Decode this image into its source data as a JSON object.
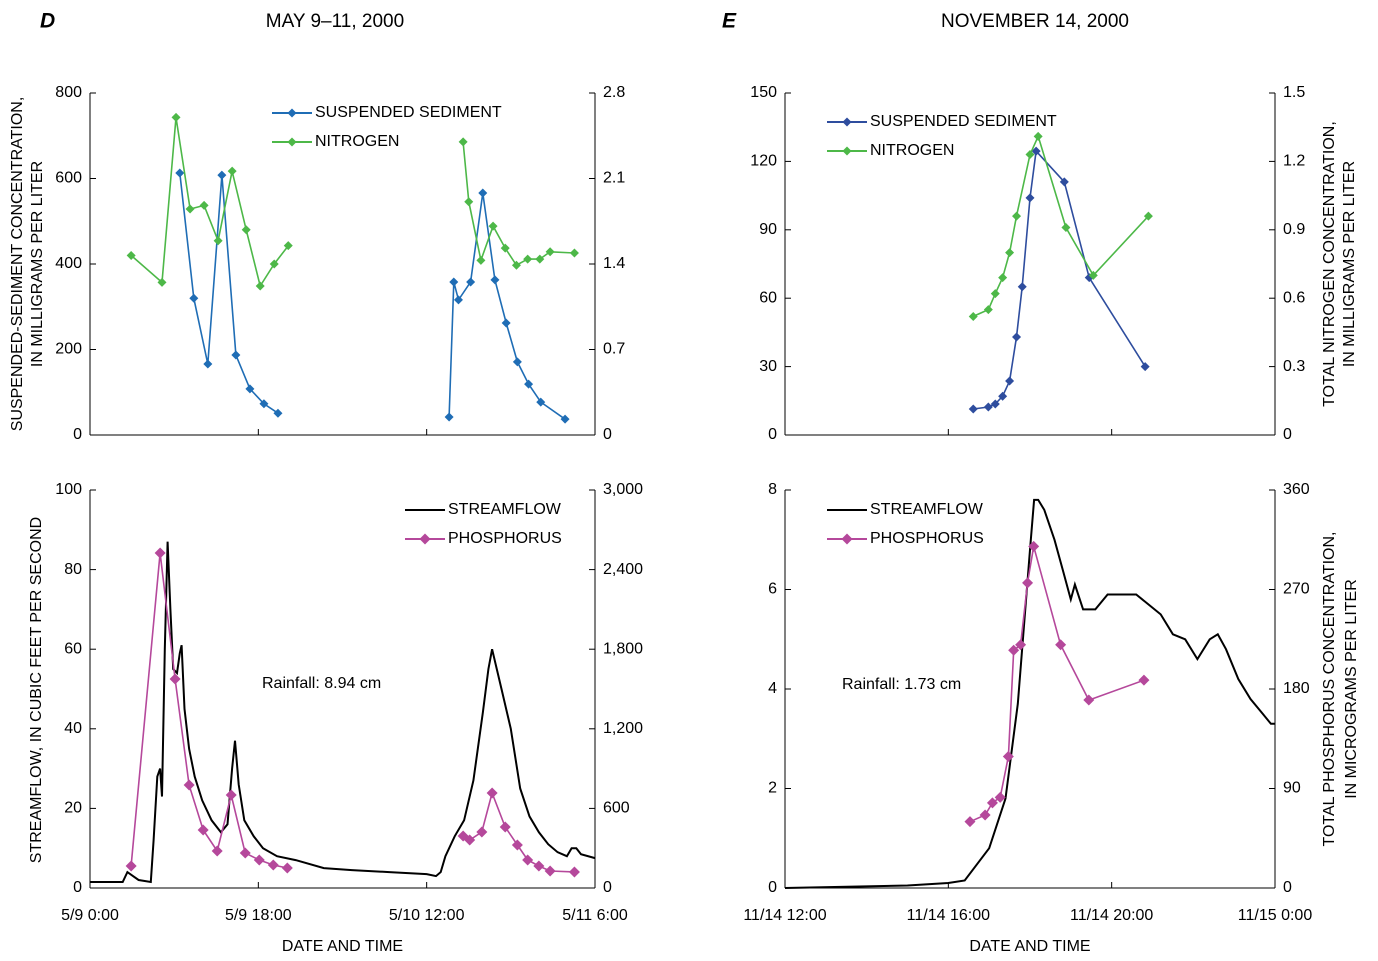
{
  "chart_data": [
    {
      "type": "line",
      "label": "D",
      "title": "MAY 9–11, 2000",
      "ylabel": [
        "SUSPENDED-SEDIMENT CONCENTRATION,",
        "IN MILLIGRAMS PER LITER"
      ],
      "xlim": [
        0,
        54
      ],
      "xticks": [
        0,
        18,
        36,
        54
      ],
      "ylim": [
        0,
        800
      ],
      "yticks": [
        0,
        200,
        400,
        600,
        800
      ],
      "ycolor": "#1f6db5",
      "y2lim": [
        0,
        2.8
      ],
      "y2ticks": [
        0,
        0.7,
        1.4,
        2.1,
        2.8
      ],
      "y2color": "#4db848",
      "legend": "upper center",
      "series": [
        {
          "name": "SUSPENDED SEDIMENT",
          "color": "#1f6db5",
          "marker": "diamond",
          "x": [
            9.6,
            11.1,
            12.6,
            14.1,
            15.6,
            17.1,
            18.6,
            20.1,
            null,
            38.4,
            38.9,
            39.4,
            40.7,
            42.0,
            43.3,
            44.5,
            45.7,
            46.9,
            48.2,
            50.8
          ],
          "values": [
            613,
            320,
            166,
            608,
            187,
            108,
            73,
            51,
            null,
            42,
            358,
            316,
            358,
            566,
            363,
            262,
            171,
            119,
            77,
            37
          ]
        },
        {
          "name": "NITROGEN",
          "color": "#4db848",
          "marker": "diamond",
          "axis": "y2",
          "x": [
            4.4,
            7.7,
            9.2,
            10.7,
            12.2,
            13.7,
            15.2,
            16.7,
            18.2,
            19.7,
            21.2,
            null,
            39.9,
            40.5,
            41.8,
            43.1,
            44.4,
            45.6,
            46.8,
            48.1,
            49.2,
            51.8
          ],
          "values": [
            1.47,
            1.25,
            2.6,
            1.85,
            1.88,
            1.59,
            2.16,
            1.68,
            1.22,
            1.4,
            1.55,
            null,
            2.4,
            1.91,
            1.43,
            1.71,
            1.53,
            1.39,
            1.44,
            1.44,
            1.5,
            1.49
          ]
        }
      ]
    },
    {
      "type": "line",
      "label": "E",
      "title": "NOVEMBER 14, 2000",
      "y2label": [
        "TOTAL NITROGEN CONCENTRATION,",
        "IN MILLIGRAMS PER LITER"
      ],
      "xlim": [
        12,
        24
      ],
      "xticks": [
        12,
        16,
        20,
        24
      ],
      "ylim": [
        0,
        150
      ],
      "yticks": [
        0,
        30,
        60,
        90,
        120,
        150
      ],
      "ycolor": "#1f6db5",
      "y2lim": [
        0,
        1.5
      ],
      "y2ticks": [
        0,
        0.3,
        0.6,
        0.9,
        1.2,
        1.5
      ],
      "y2color": "#4db848",
      "legend": "upper left",
      "series": [
        {
          "name": "SUSPENDED SEDIMENT",
          "color": "#2e4d9e",
          "marker": "diamond",
          "x": [
            16.61,
            16.98,
            17.15,
            17.33,
            17.5,
            17.67,
            17.81,
            18.0,
            18.15,
            18.84,
            19.45,
            20.82
          ],
          "values": [
            11.4,
            12.3,
            13.6,
            17,
            23.7,
            43,
            65,
            104,
            124.5,
            111,
            69,
            30
          ]
        },
        {
          "name": "NITROGEN",
          "color": "#4db848",
          "marker": "diamond",
          "axis": "y2",
          "x": [
            16.61,
            16.98,
            17.15,
            17.33,
            17.5,
            17.67,
            18.0,
            18.2,
            18.88,
            19.55,
            20.9
          ],
          "values": [
            0.52,
            0.55,
            0.62,
            0.69,
            0.8,
            0.96,
            1.23,
            1.31,
            0.91,
            0.7,
            0.96
          ]
        }
      ]
    },
    {
      "type": "line",
      "xlabel": "DATE AND TIME",
      "ylabel": [
        "STREAMFLOW, IN CUBIC FEET PER SECOND"
      ],
      "xlim": [
        0,
        54
      ],
      "xticks": [
        {
          "value": 0,
          "label": "5/9 0:00"
        },
        {
          "value": 18,
          "label": "5/9 18:00"
        },
        {
          "value": 36,
          "label": "5/10 12:00"
        },
        {
          "value": 54,
          "label": "5/11 6:00"
        }
      ],
      "ylim": [
        0,
        100
      ],
      "yticks": [
        0,
        20,
        40,
        60,
        80,
        100
      ],
      "ycolor": "#000000",
      "y2lim": [
        0,
        3000
      ],
      "y2ticks": [
        0,
        600,
        {
          "value": 1200,
          "label": "1,200"
        },
        {
          "value": 1800,
          "label": "1,800"
        },
        {
          "value": 2400,
          "label": "2,400"
        },
        {
          "value": 3000,
          "label": "3,000"
        }
      ],
      "y2color": "#b5489b",
      "legend": "upper right",
      "annotation": "Rainfall: 8.94 cm",
      "series": [
        {
          "name": "STREAMFLOW",
          "color": "#000000",
          "x": [
            0,
            3.5,
            4.0,
            4.6,
            5.2,
            6.5,
            6.8,
            7.2,
            7.5,
            7.7,
            8.0,
            8.3,
            8.6,
            8.9,
            9.3,
            9.6,
            9.8,
            10.1,
            10.6,
            11.2,
            12,
            13,
            14,
            14.7,
            15.2,
            15.5,
            15.9,
            16.5,
            17.5,
            18.5,
            20,
            22,
            25,
            28,
            32,
            36,
            37,
            37.5,
            38,
            39,
            40,
            41,
            42,
            42.6,
            43,
            43.5,
            44,
            45,
            46,
            47,
            48,
            49,
            50,
            51,
            51.5,
            52,
            52.5,
            54
          ],
          "values": [
            1.5,
            1.5,
            4,
            3,
            2,
            1.5,
            12,
            28,
            30,
            23,
            60,
            87,
            70,
            55,
            54,
            59,
            61,
            45,
            35,
            28,
            22,
            17,
            14,
            16,
            30,
            37,
            26,
            17,
            13,
            10,
            8,
            7,
            5,
            4.5,
            4,
            3.5,
            3,
            4,
            8,
            13,
            17,
            27,
            44,
            55,
            60,
            55,
            50,
            40,
            25,
            18,
            14,
            11,
            9,
            8,
            10,
            10,
            8.5,
            7.5
          ]
        },
        {
          "name": "PHOSPHORUS",
          "color": "#b5489b",
          "marker": "diamond",
          "axis": "y2",
          "x": [
            4.4,
            7.5,
            9.1,
            10.6,
            12.1,
            13.6,
            15.1,
            16.6,
            18.1,
            19.6,
            21.1,
            null,
            39.9,
            40.6,
            41.9,
            43.0,
            44.4,
            45.7,
            46.8,
            48.0,
            49.2,
            51.8
          ],
          "values": [
            166,
            2525,
            1575,
            776,
            437,
            279,
            701,
            264,
            211,
            173,
            151,
            null,
            392,
            362,
            422,
            716,
            460,
            324,
            211,
            166,
            128,
            121
          ]
        }
      ]
    },
    {
      "type": "line",
      "xlabel": "DATE AND TIME",
      "y2label": [
        "TOTAL PHOSPHORUS CONCENTRATION,",
        "IN MICROGRAMS PER LITER"
      ],
      "xlim": [
        12,
        24
      ],
      "xticks": [
        {
          "value": 12,
          "label": "11/14 12:00"
        },
        {
          "value": 16,
          "label": "11/14 16:00"
        },
        {
          "value": 20,
          "label": "11/14 20:00"
        },
        {
          "value": 24,
          "label": "11/15 0:00"
        }
      ],
      "ylim": [
        0,
        8
      ],
      "yticks": [
        0,
        2,
        4,
        6,
        8
      ],
      "ycolor": "#000000",
      "y2lim": [
        0,
        360
      ],
      "y2ticks": [
        0,
        90,
        180,
        270,
        360
      ],
      "y2color": "#b5489b",
      "legend": "upper left",
      "annotation": "Rainfall: 1.73 cm",
      "series": [
        {
          "name": "STREAMFLOW",
          "color": "#000000",
          "x": [
            12,
            15,
            16,
            16.4,
            17,
            17.4,
            17.7,
            18.0,
            18.1,
            18.2,
            18.35,
            18.6,
            18.8,
            19.0,
            19.1,
            19.3,
            19.6,
            19.9,
            20.2,
            20.6,
            20.9,
            21.2,
            21.5,
            21.8,
            22.1,
            22.4,
            22.6,
            22.8,
            23.1,
            23.4,
            23.7,
            23.9,
            24
          ],
          "values": [
            0,
            0.05,
            0.1,
            0.15,
            0.8,
            1.8,
            3.7,
            6.8,
            7.8,
            7.8,
            7.6,
            7.0,
            6.4,
            5.8,
            6.1,
            5.6,
            5.6,
            5.9,
            5.9,
            5.9,
            5.7,
            5.5,
            5.1,
            5.0,
            4.6,
            5.0,
            5.1,
            4.8,
            4.2,
            3.8,
            3.5,
            3.3,
            3.3
          ]
        },
        {
          "name": "PHOSPHORUS",
          "color": "#b5489b",
          "marker": "diamond",
          "axis": "y2",
          "x": [
            16.53,
            16.9,
            17.08,
            17.27,
            17.47,
            17.6,
            17.77,
            17.94,
            18.09,
            18.75,
            19.44,
            20.79
          ],
          "values": [
            60,
            66,
            77,
            82,
            119,
            215,
            220,
            276,
            309,
            220,
            170,
            188
          ]
        }
      ]
    }
  ]
}
